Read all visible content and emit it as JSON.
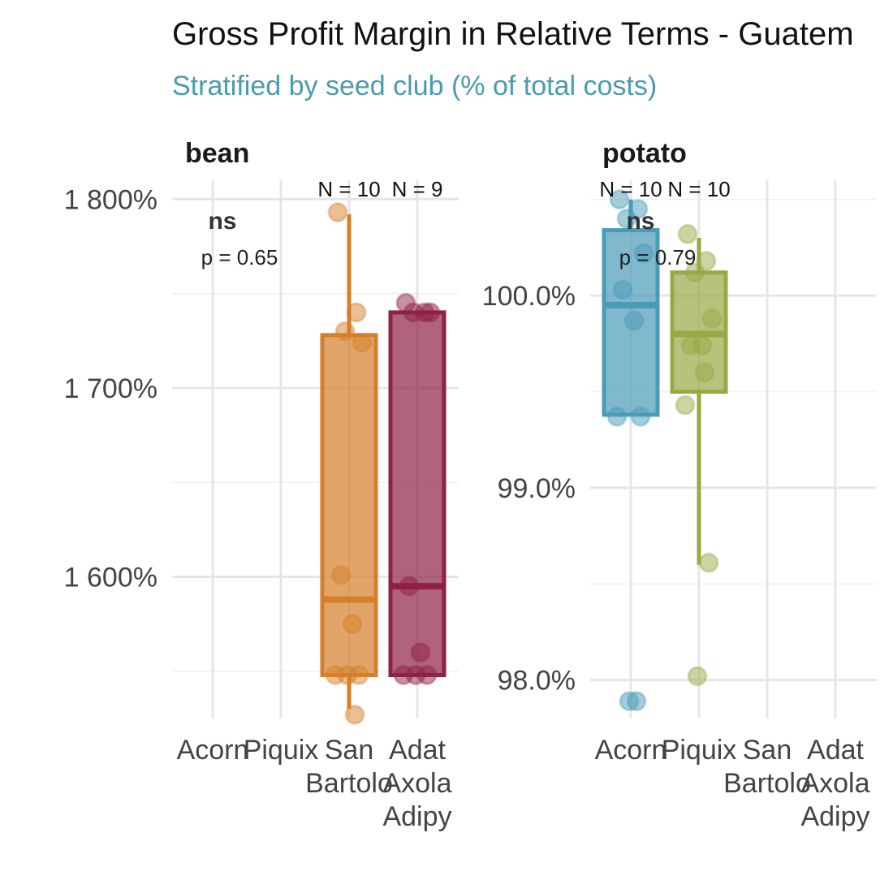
{
  "chart_data": {
    "type": "box",
    "title": "Gross Profit Margin in Relative Terms - Guatem",
    "subtitle": "Stratified by seed club (% of total costs)",
    "subtitle_color": "#4a9bb0",
    "categories": [
      "Acorn",
      "Piquix",
      "San\nBartolo",
      "Adat\nAxola\nAdipy"
    ],
    "categories_display": [
      [
        "Acorn"
      ],
      [
        "Piquix"
      ],
      [
        "San",
        "Bartolo"
      ],
      [
        "Adat",
        "Axola",
        "Adipy"
      ]
    ],
    "grid": true,
    "facets": [
      {
        "name": "bean",
        "y_ticks": [
          1600,
          1700,
          1800
        ],
        "y_tick_labels": [
          "1 600%",
          "1 700%",
          "1 800%"
        ],
        "ylim": [
          1525,
          1810
        ],
        "test": {
          "significance": "ns",
          "p_label": "p = 0.65"
        },
        "groups": [
          {
            "category": "San\nBartolo",
            "color": "#d67f2a",
            "n_label": "N = 10",
            "box": {
              "q1": 1548,
              "median": 1588,
              "q3": 1728,
              "whisker_low": 1530,
              "whisker_high": 1792
            },
            "points": [
              1793,
              1740,
              1730,
              1724,
              1601,
              1575,
              1548,
              1548,
              1548,
              1527
            ]
          },
          {
            "category": "Adat\nAxola\nAdipy",
            "color": "#8e2145",
            "n_label": "N = 9",
            "box": {
              "q1": 1548,
              "median": 1595,
              "q3": 1740,
              "whisker_low": 1548,
              "whisker_high": 1740
            },
            "points": [
              1745,
              1740,
              1740,
              1740,
              1595,
              1560,
              1548,
              1548,
              1548
            ]
          }
        ]
      },
      {
        "name": "potato",
        "y_ticks": [
          98.0,
          99.0,
          100.0
        ],
        "y_tick_labels": [
          "98.0%",
          "99.0%",
          "100.0%"
        ],
        "ylim": [
          97.8,
          100.6
        ],
        "test": {
          "significance": "ns",
          "p_label": "p = 0.79"
        },
        "groups": [
          {
            "category": "Acorn",
            "color": "#4a9bb8",
            "n_label": "N = 10",
            "box": {
              "q1": 99.38,
              "median": 99.95,
              "q3": 100.34,
              "whisker_low": 99.38,
              "whisker_high": 100.5
            },
            "points": [
              100.5,
              100.45,
              100.4,
              100.22,
              100.03,
              99.87,
              99.37,
              99.37,
              97.89,
              97.89
            ]
          },
          {
            "category": "Piquix",
            "color": "#97aa45",
            "n_label": "N = 10",
            "box": {
              "q1": 99.5,
              "median": 99.8,
              "q3": 100.12,
              "whisker_low": 98.6,
              "whisker_high": 100.3
            },
            "points": [
              100.32,
              100.18,
              100.12,
              99.88,
              99.74,
              99.74,
              99.43,
              98.61,
              98.02,
              99.6
            ]
          }
        ]
      }
    ]
  }
}
